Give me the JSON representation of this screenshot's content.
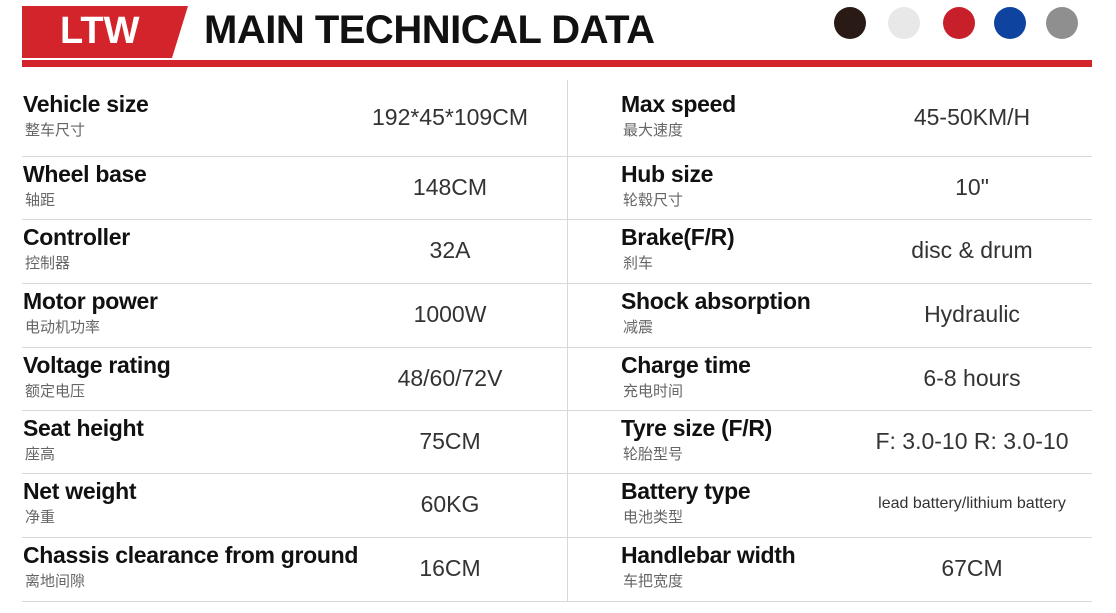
{
  "header": {
    "badge": "LTW",
    "title": "MAIN TECHNICAL DATA"
  },
  "table": {
    "rows": [
      [
        {
          "label": "Vehicle size",
          "label_cn": "整车尺寸",
          "value": "192*45*109CM"
        },
        {
          "label": "Max speed",
          "label_cn": "最大速度",
          "value": "45-50KM/H"
        }
      ],
      [
        {
          "label": "Wheel base",
          "label_cn": "轴距",
          "value": "148CM"
        },
        {
          "label": "Hub size",
          "label_cn": "轮毂尺寸",
          "value": "10\""
        }
      ],
      [
        {
          "label": "Controller",
          "label_cn": "控制器",
          "value": "32A"
        },
        {
          "label": "Brake(F/R)",
          "label_cn": "刹车",
          "value": "disc & drum"
        }
      ],
      [
        {
          "label": "Motor power",
          "label_cn": "电动机功率",
          "value": "1000W"
        },
        {
          "label": "Shock absorption",
          "label_cn": "减震",
          "value": "Hydraulic"
        }
      ],
      [
        {
          "label": "Voltage rating",
          "label_cn": "额定电压",
          "value": "48/60/72V"
        },
        {
          "label": "Charge time",
          "label_cn": "充电时间",
          "value": "6-8 hours"
        }
      ],
      [
        {
          "label": "Seat height",
          "label_cn": "座高",
          "value": "75CM"
        },
        {
          "label": "Tyre size (F/R)",
          "label_cn": "轮胎型号",
          "value": "F: 3.0-10 R: 3.0-10"
        }
      ],
      [
        {
          "label": "Net weight",
          "label_cn": "净重",
          "value": "60KG"
        },
        {
          "label": "Battery type",
          "label_cn": "电池类型",
          "value": "lead battery/lithium battery"
        }
      ],
      [
        {
          "label": "Chassis clearance from ground",
          "label_cn": "离地间隙",
          "value": "16CM"
        },
        {
          "label": "Handlebar width",
          "label_cn": "车把宽度",
          "value": "67CM"
        }
      ]
    ]
  }
}
